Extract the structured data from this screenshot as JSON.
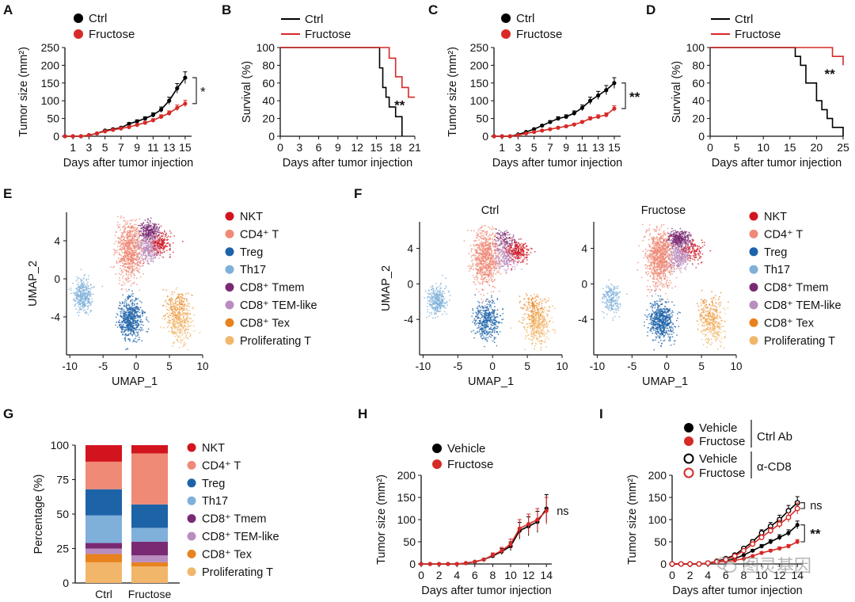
{
  "chart_data": [
    {
      "panel": "A",
      "type": "line",
      "xlabel": "Days after tumor injection",
      "ylabel": "Tumor size (mm²)",
      "xticks": [
        "1",
        "3",
        "5",
        "7",
        "9",
        "11",
        "13",
        "15"
      ],
      "yticks": [
        "0",
        "50",
        "100",
        "150",
        "200",
        "250"
      ],
      "ylim": [
        0,
        250
      ],
      "significance": "*",
      "series": [
        {
          "name": "Ctrl",
          "color": "#000000",
          "marker": "filled",
          "x": [
            0,
            1,
            2,
            3,
            4,
            5,
            6,
            7,
            8,
            9,
            10,
            11,
            12,
            13,
            14,
            15
          ],
          "y": [
            0,
            0,
            0,
            3,
            8,
            16,
            20,
            24,
            35,
            42,
            50,
            60,
            75,
            100,
            135,
            165
          ]
        },
        {
          "name": "Fructose",
          "color": "#d62a27",
          "marker": "filled",
          "x": [
            0,
            1,
            2,
            3,
            4,
            5,
            6,
            7,
            8,
            9,
            10,
            11,
            12,
            13,
            14,
            15
          ],
          "y": [
            0,
            0,
            0,
            3,
            8,
            14,
            18,
            22,
            26,
            32,
            38,
            45,
            55,
            65,
            80,
            92
          ]
        }
      ]
    },
    {
      "panel": "B",
      "type": "line",
      "xlabel": "Days after tumor injection",
      "ylabel": "Survival (%)",
      "xticks": [
        "0",
        "3",
        "6",
        "9",
        "12",
        "15",
        "18",
        "21"
      ],
      "yticks": [
        "0",
        "20",
        "40",
        "60",
        "80",
        "100"
      ],
      "ylim": [
        0,
        100
      ],
      "xlim": [
        0,
        21
      ],
      "significance": "**",
      "series": [
        {
          "name": "Ctrl",
          "color": "#000000",
          "step": true,
          "x": [
            0,
            15,
            15.5,
            16,
            16.5,
            17,
            18,
            19,
            19
          ],
          "y": [
            100,
            100,
            77,
            55,
            44,
            33,
            22,
            0,
            0
          ]
        },
        {
          "name": "Fructose",
          "color": "#d62a27",
          "step": true,
          "x": [
            0,
            16,
            17,
            18,
            19,
            20,
            21
          ],
          "y": [
            100,
            100,
            88,
            67,
            55,
            44,
            44
          ]
        }
      ]
    },
    {
      "panel": "C",
      "type": "line",
      "xlabel": "Days after tumor injection",
      "ylabel": "Tumor size (mm²)",
      "xticks": [
        "1",
        "3",
        "5",
        "7",
        "9",
        "11",
        "13",
        "15"
      ],
      "yticks": [
        "0",
        "50",
        "100",
        "150",
        "200",
        "250"
      ],
      "ylim": [
        0,
        250
      ],
      "significance": "**",
      "series": [
        {
          "name": "Ctrl",
          "color": "#000000",
          "marker": "filled",
          "x": [
            0,
            1,
            2,
            3,
            4,
            5,
            6,
            7,
            8,
            9,
            10,
            11,
            12,
            13,
            14,
            15
          ],
          "y": [
            0,
            0,
            0,
            5,
            12,
            20,
            30,
            40,
            50,
            55,
            65,
            80,
            100,
            115,
            130,
            150
          ]
        },
        {
          "name": "Fructose",
          "color": "#d62a27",
          "marker": "filled",
          "x": [
            0,
            1,
            2,
            3,
            4,
            5,
            6,
            7,
            8,
            9,
            10,
            11,
            12,
            13,
            14,
            15
          ],
          "y": [
            0,
            0,
            0,
            3,
            8,
            12,
            16,
            20,
            24,
            28,
            33,
            40,
            50,
            55,
            60,
            78
          ]
        }
      ]
    },
    {
      "panel": "D",
      "type": "line",
      "xlabel": "Days after tumor injection",
      "ylabel": "Survival (%)",
      "xticks": [
        "0",
        "5",
        "10",
        "15",
        "20",
        "25"
      ],
      "yticks": [
        "0",
        "20",
        "40",
        "60",
        "80",
        "100"
      ],
      "ylim": [
        0,
        100
      ],
      "xlim": [
        0,
        25
      ],
      "significance": "**",
      "series": [
        {
          "name": "Ctrl",
          "color": "#000000",
          "step": true,
          "x": [
            0,
            15,
            16,
            17,
            18,
            20,
            21,
            22,
            23,
            25
          ],
          "y": [
            100,
            100,
            90,
            80,
            60,
            40,
            30,
            20,
            10,
            0
          ]
        },
        {
          "name": "Fructose",
          "color": "#d62a27",
          "step": true,
          "x": [
            0,
            22,
            23,
            25
          ],
          "y": [
            100,
            100,
            90,
            80
          ]
        }
      ]
    },
    {
      "panel": "G",
      "type": "stacked-bar",
      "ylabel": "Percentage (%)",
      "categories": [
        "Ctrl",
        "Fructose"
      ],
      "yticks": [
        "0",
        "25",
        "50",
        "75",
        "100"
      ],
      "ylim": [
        0,
        100
      ],
      "series": [
        {
          "name": "Proliferating T",
          "color": "#f2b66b",
          "values": [
            15,
            12
          ]
        },
        {
          "name": "CD8⁺ Tex",
          "color": "#e8821e",
          "values": [
            6,
            3
          ]
        },
        {
          "name": "CD8⁺ TEM-like",
          "color": "#b98dbf",
          "values": [
            4,
            5
          ]
        },
        {
          "name": "CD8⁺ Tmem",
          "color": "#7a2a73",
          "values": [
            4,
            10
          ]
        },
        {
          "name": "Th17",
          "color": "#7fb0da",
          "values": [
            20,
            10
          ]
        },
        {
          "name": "Treg",
          "color": "#1d63a8",
          "values": [
            19,
            17
          ]
        },
        {
          "name": "CD4⁺ T",
          "color": "#ef8a76",
          "values": [
            20,
            37
          ]
        },
        {
          "name": "NKT",
          "color": "#d2141f",
          "values": [
            12,
            6
          ]
        }
      ]
    },
    {
      "panel": "H",
      "type": "line",
      "xlabel": "Days after tumor injection",
      "ylabel": "Tumor size (mm²)",
      "xticks": [
        "0",
        "2",
        "4",
        "6",
        "8",
        "10",
        "12",
        "14"
      ],
      "yticks": [
        "0",
        "50",
        "100",
        "150",
        "200"
      ],
      "ylim": [
        0,
        200
      ],
      "significance": "ns",
      "series": [
        {
          "name": "Vehicle",
          "color": "#000000",
          "marker": "filled",
          "x": [
            0,
            1,
            2,
            3,
            4,
            5,
            6,
            7,
            8,
            9,
            10,
            11,
            12,
            13,
            14
          ],
          "y": [
            0,
            0,
            0,
            0,
            0,
            2,
            5,
            10,
            18,
            28,
            40,
            75,
            85,
            95,
            125
          ]
        },
        {
          "name": "Fructose",
          "color": "#d62a27",
          "marker": "filled",
          "x": [
            0,
            1,
            2,
            3,
            4,
            5,
            6,
            7,
            8,
            9,
            10,
            11,
            12,
            13,
            14
          ],
          "y": [
            0,
            0,
            0,
            0,
            0,
            2,
            5,
            10,
            20,
            30,
            45,
            80,
            90,
            100,
            120
          ]
        }
      ]
    },
    {
      "panel": "I",
      "type": "line",
      "xlabel": "Days after tumor injection",
      "ylabel": "Tumor size (mm²)",
      "xticks": [
        "0",
        "2",
        "4",
        "6",
        "8",
        "10",
        "12",
        "14"
      ],
      "yticks": [
        "0",
        "50",
        "100",
        "150",
        "200"
      ],
      "ylim": [
        0,
        200
      ],
      "group_labels": [
        "Ctrl Ab",
        "α-CD8"
      ],
      "significance": [
        "ns",
        "**"
      ],
      "series": [
        {
          "name": "Vehicle",
          "group": "Ctrl Ab",
          "color": "#000000",
          "marker": "filled",
          "x": [
            0,
            1,
            2,
            3,
            4,
            5,
            6,
            7,
            8,
            9,
            10,
            11,
            12,
            13,
            14
          ],
          "y": [
            0,
            0,
            0,
            0,
            2,
            5,
            8,
            12,
            20,
            30,
            40,
            50,
            60,
            70,
            88
          ]
        },
        {
          "name": "Fructose",
          "group": "Ctrl Ab",
          "color": "#d62a27",
          "marker": "filled",
          "x": [
            0,
            1,
            2,
            3,
            4,
            5,
            6,
            7,
            8,
            9,
            10,
            11,
            12,
            13,
            14
          ],
          "y": [
            0,
            0,
            0,
            0,
            2,
            4,
            6,
            8,
            12,
            18,
            25,
            30,
            35,
            40,
            50
          ]
        },
        {
          "name": "Vehicle",
          "group": "α-CD8",
          "color": "#000000",
          "marker": "open",
          "x": [
            0,
            1,
            2,
            3,
            4,
            5,
            6,
            7,
            8,
            9,
            10,
            11,
            12,
            13,
            14
          ],
          "y": [
            0,
            0,
            0,
            0,
            2,
            6,
            12,
            20,
            35,
            50,
            70,
            85,
            100,
            120,
            138
          ]
        },
        {
          "name": "Fructose",
          "group": "α-CD8",
          "color": "#d62a27",
          "marker": "open",
          "x": [
            0,
            1,
            2,
            3,
            4,
            5,
            6,
            7,
            8,
            9,
            10,
            11,
            12,
            13,
            14
          ],
          "y": [
            0,
            0,
            0,
            0,
            2,
            5,
            10,
            18,
            30,
            45,
            60,
            75,
            90,
            105,
            125
          ]
        }
      ]
    },
    {
      "panel": "E",
      "type": "scatter",
      "xlabel": "UMAP_1",
      "ylabel": "UMAP_2",
      "xticks": [
        "-10",
        "-5",
        "0",
        "5",
        "10"
      ],
      "yticks": [
        "4",
        "0",
        "-4"
      ],
      "xlim": [
        -10.5,
        10
      ],
      "ylim": [
        -8,
        7
      ],
      "clusters": [
        {
          "name": "NKT",
          "color": "#d2141f",
          "center": [
            3.5,
            3.7
          ],
          "spread": [
            1.5,
            1.0
          ],
          "count": 250
        },
        {
          "name": "CD4⁺ T",
          "color": "#ef8a76",
          "center": [
            -1.0,
            3.0
          ],
          "spread": [
            1.6,
            2.6
          ],
          "count": 800
        },
        {
          "name": "Treg",
          "color": "#1d63a8",
          "center": [
            -0.8,
            -4.2
          ],
          "spread": [
            1.5,
            1.8
          ],
          "count": 600
        },
        {
          "name": "Th17",
          "color": "#7fb0da",
          "center": [
            -8.0,
            -1.8
          ],
          "spread": [
            1.1,
            1.4
          ],
          "count": 350
        },
        {
          "name": "CD8⁺ Tmem",
          "color": "#7a2a73",
          "center": [
            1.8,
            5.0
          ],
          "spread": [
            1.2,
            0.8
          ],
          "count": 250
        },
        {
          "name": "CD8⁺ TEM-like",
          "color": "#b98dbf",
          "center": [
            1.8,
            3.0
          ],
          "spread": [
            1.3,
            1.2
          ],
          "count": 260
        },
        {
          "name": "CD8⁺ Tex",
          "color": "#e8821e",
          "center": [
            6.0,
            -3.0
          ],
          "spread": [
            1.5,
            1.5
          ],
          "count": 150
        },
        {
          "name": "Proliferating T",
          "color": "#f2b66b",
          "center": [
            6.5,
            -4.5
          ],
          "spread": [
            1.5,
            2.0
          ],
          "count": 350
        }
      ]
    }
  ],
  "labels": {
    "panels": [
      "A",
      "B",
      "C",
      "D",
      "E",
      "F",
      "G",
      "H",
      "I"
    ],
    "legend_ctrl": "Ctrl",
    "legend_fructose": "Fructose",
    "legend_vehicle": "Vehicle",
    "f_title_ctrl": "Ctrl",
    "f_title_fructose": "Fructose",
    "cell_types": [
      "NKT",
      "CD4⁺ T",
      "Treg",
      "Th17",
      "CD8⁺ Tmem",
      "CD8⁺ TEM-like",
      "CD8⁺ Tex",
      "Proliferating T"
    ],
    "cell_colors": [
      "#d2141f",
      "#ef8a76",
      "#1d63a8",
      "#7fb0da",
      "#7a2a73",
      "#b98dbf",
      "#e8821e",
      "#f2b66b"
    ],
    "umap_x": "UMAP_1",
    "umap_y": "UMAP_2",
    "watermark": "图灵基因"
  }
}
